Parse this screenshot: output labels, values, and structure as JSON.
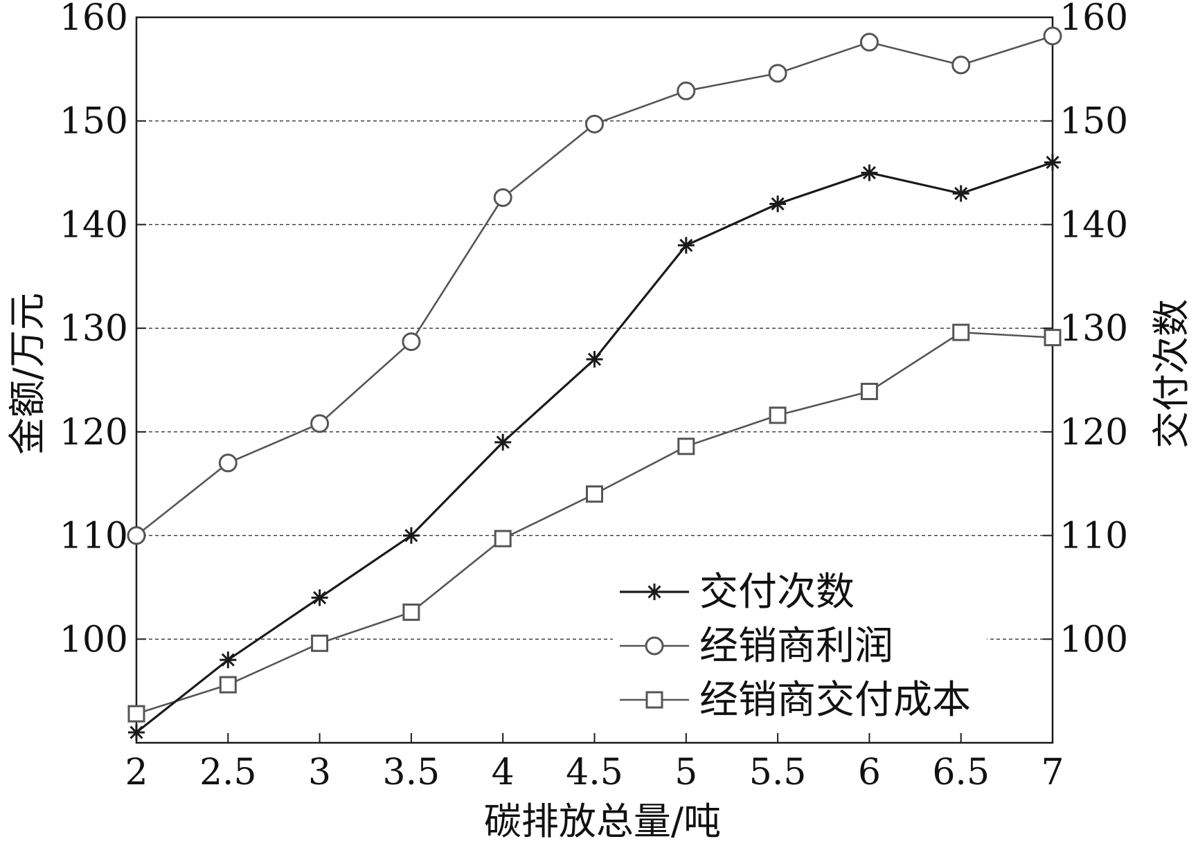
{
  "chart_data": {
    "type": "line",
    "xlabel": "碳排放总量/吨",
    "ylabel_left": "金额/万元",
    "ylabel_right": "交付次数",
    "xlim": [
      2,
      7
    ],
    "ylim": [
      90,
      160
    ],
    "y2lim": [
      90,
      160
    ],
    "x_ticks": [
      2,
      2.5,
      3,
      3.5,
      4,
      4.5,
      5,
      5.5,
      6,
      6.5,
      7
    ],
    "x_tick_labels": [
      "2",
      "2.5",
      "3",
      "3.5",
      "4",
      "4.5",
      "5",
      "5.5",
      "6",
      "6.5",
      "7"
    ],
    "y_ticks": [
      100,
      110,
      120,
      130,
      140,
      150,
      160
    ],
    "y_tick_labels": [
      "100",
      "110",
      "120",
      "130",
      "140",
      "150",
      "160"
    ],
    "y2_ticks": [
      100,
      110,
      120,
      130,
      140,
      150,
      160
    ],
    "y2_tick_labels": [
      "100",
      "110",
      "120",
      "130",
      "140",
      "150",
      "160"
    ],
    "grid": "horizontal dashed",
    "legend_position": "bottom-right",
    "x": [
      2,
      2.5,
      3,
      3.5,
      4,
      4.5,
      5,
      5.5,
      6,
      6.5,
      7
    ],
    "series": [
      {
        "name": "交付次数",
        "marker": "star",
        "axis": "right",
        "color": "#1a1a1a",
        "values": [
          91,
          98,
          104,
          110,
          119,
          127,
          138,
          142,
          145,
          143,
          146
        ]
      },
      {
        "name": "经销商利润",
        "marker": "circle",
        "axis": "left",
        "color": "#555555",
        "values": [
          110,
          117,
          120.8,
          128.7,
          142.6,
          149.7,
          152.9,
          154.6,
          157.6,
          155.4,
          158.2
        ]
      },
      {
        "name": "经销商交付成本",
        "marker": "square",
        "axis": "left",
        "color": "#555555",
        "values": [
          92.8,
          95.6,
          99.6,
          102.6,
          109.7,
          114,
          118.6,
          121.6,
          123.9,
          129.6,
          129.1
        ]
      }
    ]
  }
}
